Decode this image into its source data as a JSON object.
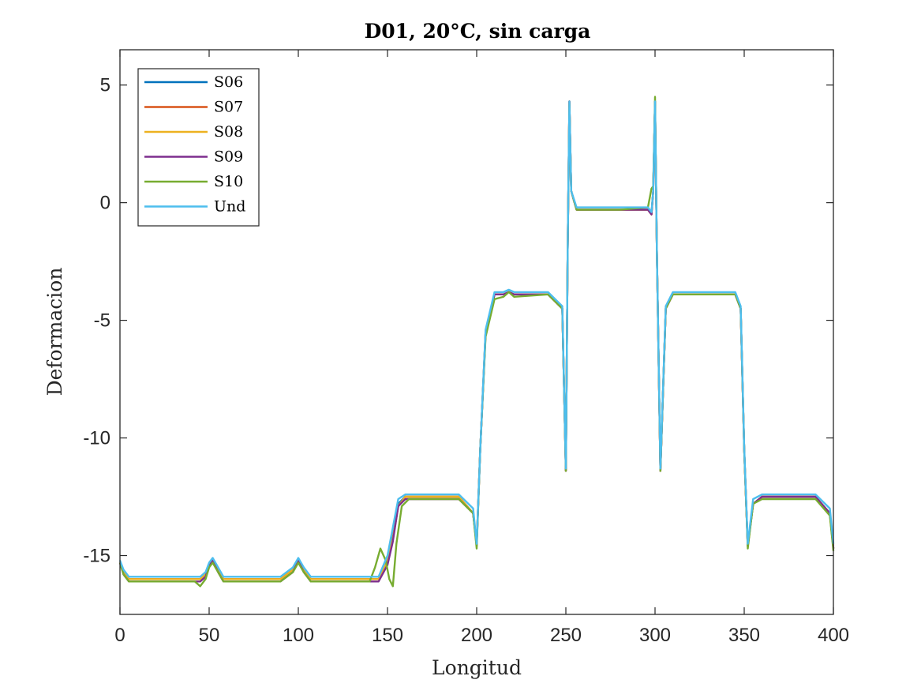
{
  "chart_data": {
    "type": "line",
    "title": "D01, 20°C, sin carga",
    "xlabel": "Longitud",
    "ylabel": "Deformacion",
    "xlim": [
      0,
      400
    ],
    "ylim": [
      -17.5,
      6.5
    ],
    "xticks": [
      0,
      50,
      100,
      150,
      200,
      250,
      300,
      350,
      400
    ],
    "yticks": [
      5,
      0,
      -5,
      -10,
      -15
    ],
    "ytick_labels": [
      "5",
      "0",
      "-5",
      "-10",
      "-15"
    ],
    "grid": false,
    "legend_position": "top-left",
    "series": [
      {
        "name": "S06",
        "color": "#0072BD",
        "x": [
          0,
          2,
          5,
          20,
          45,
          48,
          50,
          52,
          55,
          58,
          90,
          97,
          100,
          103,
          107,
          145,
          150,
          153,
          156,
          160,
          190,
          198,
          200,
          202,
          205,
          210,
          215,
          218,
          221,
          240,
          248,
          250,
          251,
          252,
          253,
          256,
          262,
          280,
          296,
          298,
          299,
          300,
          301,
          303,
          306,
          310,
          315,
          345,
          348,
          350,
          352,
          355,
          360,
          390,
          398,
          400
        ],
        "y": [
          -15.3,
          -15.7,
          -16.0,
          -16.0,
          -16.0,
          -15.8,
          -15.4,
          -15.2,
          -15.6,
          -16.0,
          -16.0,
          -15.6,
          -15.2,
          -15.6,
          -16.0,
          -16.0,
          -15.2,
          -14.2,
          -12.8,
          -12.5,
          -12.5,
          -13.2,
          -14.5,
          -10.5,
          -5.5,
          -3.9,
          -3.9,
          -3.8,
          -3.9,
          -3.9,
          -4.5,
          -11.4,
          -2.0,
          4.3,
          0.5,
          -0.3,
          -0.3,
          -0.3,
          -0.3,
          -0.5,
          0.5,
          4.3,
          -2.0,
          -11.4,
          -4.5,
          -3.9,
          -3.9,
          -3.9,
          -4.5,
          -10.5,
          -14.6,
          -12.8,
          -12.5,
          -12.5,
          -13.2,
          -14.7
        ]
      },
      {
        "name": "S07",
        "color": "#D95319",
        "x": [
          0,
          2,
          5,
          20,
          45,
          48,
          50,
          52,
          55,
          58,
          90,
          97,
          100,
          103,
          107,
          145,
          150,
          153,
          156,
          160,
          190,
          198,
          200,
          202,
          205,
          210,
          215,
          218,
          221,
          240,
          248,
          250,
          251,
          252,
          253,
          256,
          262,
          280,
          296,
          298,
          299,
          300,
          301,
          303,
          306,
          310,
          315,
          345,
          348,
          350,
          352,
          355,
          360,
          390,
          398,
          400
        ],
        "y": [
          -15.3,
          -15.7,
          -16.0,
          -16.0,
          -16.0,
          -15.8,
          -15.4,
          -15.2,
          -15.6,
          -16.0,
          -16.0,
          -15.6,
          -15.2,
          -15.6,
          -16.0,
          -16.0,
          -15.2,
          -14.3,
          -12.9,
          -12.5,
          -12.5,
          -13.2,
          -14.5,
          -10.5,
          -5.5,
          -3.9,
          -3.9,
          -3.8,
          -3.9,
          -3.9,
          -4.5,
          -11.4,
          -2.0,
          4.3,
          0.5,
          -0.3,
          -0.3,
          -0.3,
          -0.3,
          -0.5,
          0.5,
          4.3,
          -2.0,
          -11.4,
          -4.5,
          -3.9,
          -3.9,
          -3.9,
          -4.5,
          -10.5,
          -14.6,
          -12.8,
          -12.5,
          -12.5,
          -13.2,
          -14.7
        ]
      },
      {
        "name": "S08",
        "color": "#EDB120",
        "x": [
          0,
          2,
          5,
          20,
          45,
          48,
          50,
          52,
          55,
          58,
          90,
          97,
          100,
          103,
          107,
          145,
          150,
          153,
          156,
          160,
          190,
          198,
          200,
          202,
          205,
          210,
          215,
          218,
          221,
          240,
          248,
          250,
          251,
          252,
          253,
          256,
          262,
          280,
          296,
          298,
          299,
          300,
          301,
          303,
          306,
          310,
          315,
          345,
          348,
          350,
          352,
          355,
          360,
          390,
          398,
          400
        ],
        "y": [
          -15.3,
          -15.7,
          -16.0,
          -16.0,
          -16.0,
          -15.8,
          -15.4,
          -15.2,
          -15.6,
          -16.0,
          -16.0,
          -15.6,
          -15.2,
          -15.6,
          -16.0,
          -16.0,
          -15.2,
          -14.3,
          -12.9,
          -12.5,
          -12.5,
          -13.2,
          -14.5,
          -10.5,
          -5.5,
          -3.9,
          -3.9,
          -3.8,
          -3.9,
          -3.9,
          -4.5,
          -11.4,
          -2.0,
          4.3,
          0.5,
          -0.3,
          -0.3,
          -0.3,
          -0.3,
          -0.5,
          0.5,
          4.3,
          -2.0,
          -11.4,
          -4.5,
          -3.9,
          -3.9,
          -3.9,
          -4.5,
          -10.5,
          -14.6,
          -12.8,
          -12.5,
          -12.5,
          -13.2,
          -14.7
        ]
      },
      {
        "name": "S09",
        "color": "#7E2F8E",
        "x": [
          0,
          2,
          5,
          20,
          45,
          48,
          50,
          52,
          55,
          58,
          90,
          97,
          100,
          103,
          107,
          145,
          150,
          153,
          156,
          160,
          190,
          198,
          200,
          202,
          205,
          210,
          215,
          218,
          221,
          240,
          248,
          250,
          251,
          252,
          253,
          256,
          262,
          280,
          296,
          298,
          299,
          300,
          301,
          303,
          306,
          310,
          315,
          345,
          348,
          350,
          352,
          355,
          360,
          390,
          398,
          400
        ],
        "y": [
          -15.3,
          -15.8,
          -16.1,
          -16.1,
          -16.1,
          -15.9,
          -15.4,
          -15.2,
          -15.7,
          -16.1,
          -16.1,
          -15.7,
          -15.2,
          -15.7,
          -16.1,
          -16.1,
          -15.4,
          -14.4,
          -12.9,
          -12.6,
          -12.6,
          -13.2,
          -14.6,
          -10.5,
          -5.6,
          -3.9,
          -3.9,
          -3.8,
          -3.9,
          -3.9,
          -4.5,
          -11.4,
          -2.0,
          4.3,
          0.5,
          -0.3,
          -0.3,
          -0.3,
          -0.3,
          -0.5,
          0.5,
          4.3,
          -2.0,
          -11.4,
          -4.5,
          -3.9,
          -3.9,
          -3.9,
          -4.5,
          -10.5,
          -14.6,
          -12.8,
          -12.5,
          -12.5,
          -13.2,
          -14.7
        ]
      },
      {
        "name": "S10",
        "color": "#77AC30",
        "x": [
          0,
          2,
          5,
          20,
          42,
          45,
          48,
          50,
          52,
          55,
          58,
          90,
          97,
          100,
          103,
          107,
          140,
          143,
          146,
          149,
          151,
          153,
          155,
          158,
          162,
          190,
          198,
          200,
          202,
          205,
          210,
          215,
          218,
          221,
          240,
          248,
          250,
          251,
          252,
          253,
          256,
          262,
          280,
          296,
          298,
          299,
          300,
          301,
          303,
          306,
          310,
          315,
          345,
          348,
          350,
          352,
          355,
          360,
          390,
          398,
          400
        ],
        "y": [
          -15.3,
          -15.8,
          -16.1,
          -16.1,
          -16.1,
          -16.3,
          -16.0,
          -15.5,
          -15.3,
          -15.7,
          -16.1,
          -16.1,
          -15.7,
          -15.3,
          -15.7,
          -16.1,
          -16.1,
          -15.5,
          -14.7,
          -15.2,
          -16.0,
          -16.3,
          -14.5,
          -12.9,
          -12.6,
          -12.6,
          -13.2,
          -14.7,
          -10.5,
          -5.7,
          -4.1,
          -4.0,
          -3.8,
          -4.0,
          -3.9,
          -4.5,
          -11.4,
          -2.0,
          4.2,
          0.5,
          -0.3,
          -0.3,
          -0.3,
          -0.2,
          0.6,
          0.7,
          4.5,
          -2.0,
          -11.4,
          -4.5,
          -3.9,
          -3.9,
          -3.9,
          -4.5,
          -10.5,
          -14.7,
          -12.8,
          -12.6,
          -12.6,
          -13.3,
          -14.8
        ]
      },
      {
        "name": "Und",
        "color": "#4DBEEE",
        "x": [
          0,
          2,
          5,
          20,
          45,
          48,
          50,
          52,
          55,
          58,
          90,
          97,
          100,
          103,
          107,
          145,
          150,
          153,
          156,
          160,
          190,
          198,
          200,
          202,
          205,
          210,
          215,
          218,
          221,
          240,
          248,
          250,
          251,
          252,
          253,
          256,
          262,
          280,
          296,
          298,
          299,
          300,
          301,
          303,
          306,
          310,
          315,
          345,
          348,
          350,
          352,
          355,
          360,
          390,
          398,
          400
        ],
        "y": [
          -15.2,
          -15.6,
          -15.9,
          -15.9,
          -15.9,
          -15.7,
          -15.3,
          -15.1,
          -15.5,
          -15.9,
          -15.9,
          -15.5,
          -15.1,
          -15.5,
          -15.9,
          -15.9,
          -15.0,
          -13.8,
          -12.6,
          -12.4,
          -12.4,
          -13.0,
          -14.5,
          -10.5,
          -5.4,
          -3.8,
          -3.8,
          -3.7,
          -3.8,
          -3.8,
          -4.4,
          -11.3,
          -2.0,
          4.3,
          0.5,
          -0.2,
          -0.2,
          -0.2,
          -0.2,
          -0.4,
          0.5,
          4.3,
          -2.0,
          -11.3,
          -4.4,
          -3.8,
          -3.8,
          -3.8,
          -4.4,
          -10.4,
          -14.5,
          -12.6,
          -12.4,
          -12.4,
          -13.0,
          -14.5
        ]
      }
    ]
  }
}
